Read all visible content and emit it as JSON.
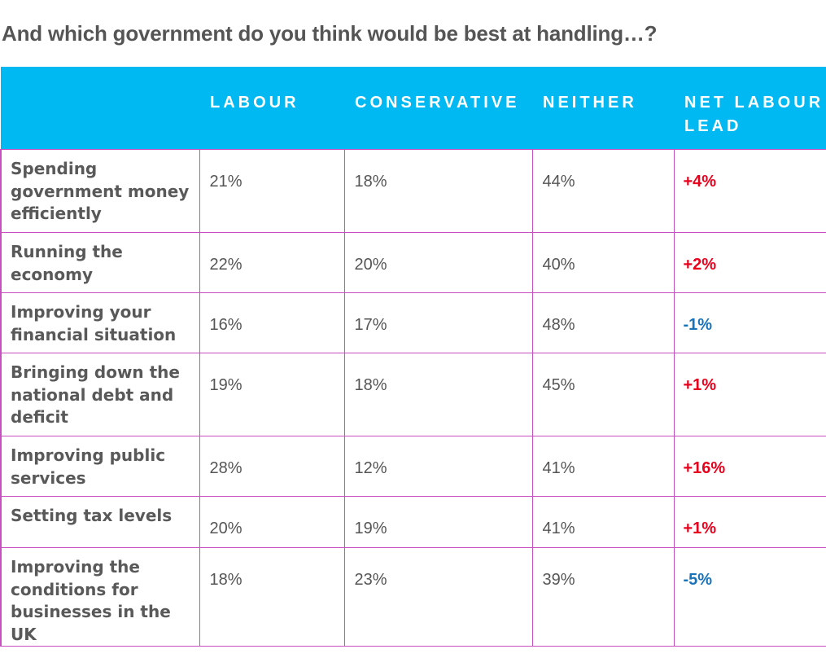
{
  "chart_data": {
    "type": "table",
    "title": "And which government do you think would be best at handling…?",
    "columns": [
      "",
      "LABOUR",
      "CONSERVATIVE",
      "NEITHER",
      "NET LABOUR LEAD"
    ],
    "rows": [
      {
        "label": "Spending government money efficiently",
        "labour": "21%",
        "conservative": "18%",
        "neither": "44%",
        "lead": "+4%"
      },
      {
        "label": "Running the economy",
        "labour": "22%",
        "conservative": "20%",
        "neither": "40%",
        "lead": "+2%"
      },
      {
        "label": "Improving your financial situation",
        "labour": "16%",
        "conservative": "17%",
        "neither": "48%",
        "lead": "-1%"
      },
      {
        "label": "Bringing down the national debt and deficit",
        "labour": "19%",
        "conservative": "18%",
        "neither": "45%",
        "lead": "+1%"
      },
      {
        "label": "Improving public services",
        "labour": "28%",
        "conservative": "12%",
        "neither": "41%",
        "lead": "+16%"
      },
      {
        "label": "Setting tax levels",
        "labour": "20%",
        "conservative": "19%",
        "neither": "41%",
        "lead": "+1%"
      },
      {
        "label": "Improving the conditions for businesses in the UK",
        "labour": "18%",
        "conservative": "23%",
        "neither": "39%",
        "lead": "-5%"
      }
    ],
    "colors": {
      "header_background": "#00b9f2",
      "positive_lead": "#e8001c",
      "negative_lead": "#1a73b8",
      "grid_line": "#c74fc0"
    }
  }
}
